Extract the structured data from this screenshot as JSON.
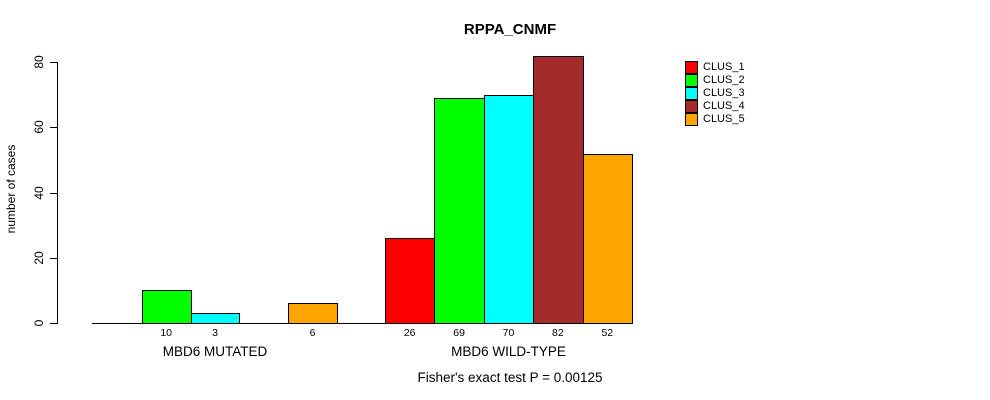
{
  "title": "RPPA_CNMF",
  "ylabel": "number of cases",
  "footnote": "Fisher's exact test P = 0.00125",
  "legend": {
    "entries": [
      {
        "label": "CLUS_1",
        "color": "#FF0000"
      },
      {
        "label": "CLUS_2",
        "color": "#00FF00"
      },
      {
        "label": "CLUS_3",
        "color": "#00FFFF"
      },
      {
        "label": "CLUS_4",
        "color": "#A52A2A"
      },
      {
        "label": "CLUS_5",
        "color": "#FFA500"
      }
    ]
  },
  "chart_data": {
    "type": "bar",
    "title": "RPPA_CNMF",
    "xlabel": "",
    "ylabel": "number of cases",
    "categories": [
      "MBD6 MUTATED",
      "MBD6 WILD-TYPE"
    ],
    "series": [
      {
        "name": "CLUS_1",
        "color": "#FF0000",
        "values": [
          0,
          26
        ]
      },
      {
        "name": "CLUS_2",
        "color": "#00FF00",
        "values": [
          10,
          69
        ]
      },
      {
        "name": "CLUS_3",
        "color": "#00FFFF",
        "values": [
          3,
          70
        ]
      },
      {
        "name": "CLUS_4",
        "color": "#A52A2A",
        "values": [
          0,
          82
        ]
      },
      {
        "name": "CLUS_5",
        "color": "#FFA500",
        "values": [
          6,
          52
        ]
      }
    ],
    "y_ticks": [
      0,
      20,
      40,
      60,
      80
    ],
    "ylim": [
      0,
      80
    ],
    "grid": false,
    "legend_position": "right",
    "bar_value_labels_shown": true,
    "zero_value_labels_hidden": true,
    "annotation": "Fisher's exact test P = 0.00125"
  }
}
